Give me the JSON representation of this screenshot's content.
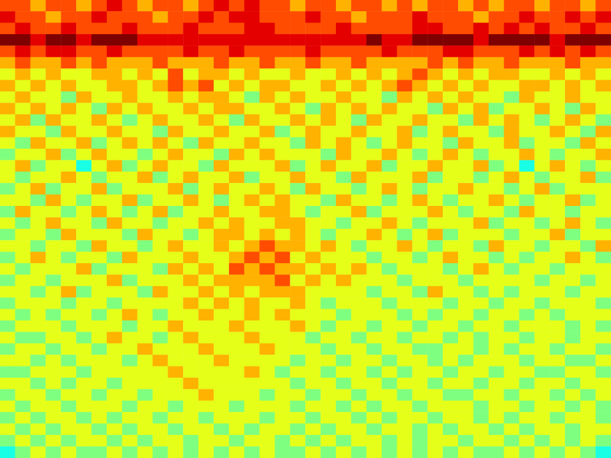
{
  "chart_data": {
    "type": "heatmap",
    "tick_labels": false,
    "grid": false,
    "zlim": [
      0,
      10
    ],
    "cells": [
      [
        8,
        8,
        7,
        8,
        8,
        7,
        8,
        9,
        8,
        7,
        8,
        8,
        7,
        8,
        9,
        8,
        9,
        8,
        8,
        7,
        8,
        8,
        7,
        8,
        8,
        7,
        8,
        7,
        8,
        8,
        7,
        8,
        7,
        8,
        8,
        7,
        8,
        8,
        7,
        8
      ],
      [
        9,
        8,
        8,
        7,
        8,
        8,
        9,
        8,
        8,
        8,
        7,
        8,
        8,
        9,
        8,
        9,
        9,
        8,
        8,
        8,
        9,
        8,
        8,
        7,
        8,
        8,
        8,
        9,
        8,
        8,
        8,
        7,
        8,
        8,
        9,
        8,
        8,
        9,
        8,
        9
      ],
      [
        8,
        9,
        8,
        8,
        9,
        8,
        8,
        8,
        9,
        8,
        8,
        8,
        9,
        8,
        8,
        8,
        9,
        9,
        8,
        8,
        8,
        8,
        9,
        8,
        8,
        8,
        8,
        9,
        9,
        8,
        8,
        9,
        8,
        9,
        8,
        9,
        8,
        8,
        9,
        8
      ],
      [
        10,
        10,
        9,
        10,
        10,
        9,
        10,
        10,
        10,
        9,
        9,
        9,
        9,
        9,
        9,
        9,
        9,
        9,
        9,
        9,
        9,
        9,
        9,
        9,
        10,
        9,
        9,
        10,
        10,
        10,
        10,
        9,
        10,
        10,
        10,
        10,
        9,
        10,
        10,
        10
      ],
      [
        8,
        9,
        8,
        9,
        9,
        8,
        8,
        9,
        8,
        8,
        8,
        8,
        9,
        8,
        8,
        9,
        8,
        8,
        8,
        8,
        9,
        8,
        8,
        8,
        8,
        9,
        8,
        8,
        8,
        9,
        9,
        8,
        8,
        8,
        9,
        8,
        9,
        8,
        9,
        8
      ],
      [
        7,
        8,
        7,
        7,
        8,
        7,
        8,
        7,
        7,
        7,
        8,
        7,
        7,
        7,
        8,
        7,
        7,
        8,
        7,
        7,
        8,
        7,
        7,
        8,
        7,
        7,
        7,
        7,
        8,
        7,
        8,
        7,
        7,
        8,
        7,
        7,
        7,
        8,
        7,
        7
      ],
      [
        6,
        7,
        6,
        7,
        6,
        6,
        7,
        7,
        6,
        7,
        6,
        8,
        6,
        7,
        7,
        6,
        7,
        6,
        6,
        7,
        6,
        6,
        7,
        6,
        7,
        6,
        7,
        8,
        7,
        6,
        7,
        6,
        7,
        7,
        6,
        6,
        7,
        6,
        7,
        6
      ],
      [
        7,
        6,
        7,
        6,
        7,
        6,
        6,
        7,
        7,
        6,
        7,
        8,
        7,
        8,
        6,
        7,
        6,
        7,
        7,
        6,
        6,
        7,
        6,
        7,
        6,
        7,
        8,
        7,
        6,
        7,
        6,
        7,
        6,
        6,
        7,
        7,
        6,
        7,
        6,
        7
      ],
      [
        6,
        7,
        6,
        6,
        5,
        7,
        6,
        6,
        7,
        6,
        6,
        7,
        6,
        7,
        7,
        6,
        5,
        7,
        6,
        7,
        6,
        6,
        7,
        6,
        6,
        5,
        7,
        6,
        7,
        6,
        7,
        6,
        6,
        5,
        7,
        6,
        6,
        7,
        6,
        6
      ],
      [
        7,
        6,
        7,
        6,
        7,
        6,
        5,
        7,
        6,
        7,
        6,
        6,
        7,
        6,
        7,
        7,
        6,
        6,
        7,
        6,
        5,
        7,
        6,
        7,
        6,
        7,
        6,
        6,
        5,
        7,
        6,
        7,
        5,
        6,
        6,
        7,
        6,
        5,
        7,
        6
      ],
      [
        6,
        7,
        5,
        7,
        6,
        6,
        7,
        6,
        5,
        6,
        7,
        6,
        6,
        7,
        6,
        5,
        7,
        6,
        6,
        7,
        6,
        7,
        6,
        5,
        7,
        6,
        6,
        7,
        6,
        6,
        5,
        7,
        6,
        7,
        6,
        5,
        6,
        7,
        6,
        5
      ],
      [
        7,
        6,
        6,
        5,
        7,
        6,
        6,
        7,
        6,
        6,
        5,
        7,
        6,
        6,
        7,
        6,
        6,
        7,
        5,
        6,
        7,
        6,
        6,
        7,
        6,
        6,
        7,
        5,
        6,
        7,
        6,
        6,
        5,
        7,
        6,
        6,
        7,
        6,
        5,
        7
      ],
      [
        6,
        5,
        7,
        6,
        6,
        7,
        5,
        6,
        7,
        6,
        7,
        6,
        5,
        7,
        6,
        6,
        7,
        6,
        6,
        5,
        7,
        6,
        7,
        6,
        5,
        6,
        7,
        6,
        6,
        5,
        7,
        6,
        6,
        7,
        5,
        6,
        6,
        5,
        7,
        6
      ],
      [
        5,
        6,
        6,
        7,
        5,
        6,
        7,
        6,
        6,
        5,
        6,
        7,
        6,
        6,
        5,
        7,
        6,
        7,
        6,
        6,
        6,
        5,
        7,
        6,
        6,
        7,
        6,
        5,
        6,
        7,
        6,
        5,
        6,
        6,
        7,
        6,
        5,
        6,
        6,
        7
      ],
      [
        6,
        7,
        5,
        6,
        6,
        4,
        6,
        7,
        5,
        6,
        7,
        6,
        6,
        5,
        7,
        6,
        6,
        6,
        7,
        5,
        6,
        7,
        6,
        6,
        7,
        5,
        6,
        6,
        7,
        6,
        6,
        7,
        5,
        6,
        4,
        6,
        7,
        6,
        5,
        6
      ],
      [
        6,
        5,
        6,
        6,
        7,
        6,
        5,
        6,
        6,
        7,
        5,
        6,
        7,
        6,
        6,
        7,
        5,
        6,
        6,
        7,
        6,
        6,
        5,
        7,
        6,
        6,
        6,
        7,
        5,
        6,
        6,
        5,
        6,
        7,
        6,
        5,
        6,
        6,
        7,
        5
      ],
      [
        5,
        6,
        7,
        5,
        6,
        6,
        7,
        5,
        6,
        6,
        6,
        7,
        5,
        6,
        7,
        6,
        6,
        7,
        6,
        5,
        7,
        6,
        6,
        5,
        6,
        7,
        6,
        5,
        6,
        6,
        7,
        6,
        6,
        5,
        6,
        7,
        5,
        6,
        6,
        6
      ],
      [
        6,
        6,
        5,
        7,
        6,
        5,
        6,
        6,
        7,
        5,
        6,
        6,
        7,
        6,
        5,
        6,
        7,
        6,
        7,
        6,
        6,
        5,
        7,
        6,
        6,
        5,
        6,
        7,
        6,
        5,
        6,
        6,
        7,
        6,
        5,
        6,
        6,
        7,
        5,
        6
      ],
      [
        5,
        7,
        6,
        6,
        5,
        6,
        7,
        6,
        5,
        6,
        7,
        5,
        6,
        6,
        7,
        6,
        6,
        7,
        7,
        6,
        5,
        6,
        6,
        7,
        5,
        6,
        6,
        6,
        7,
        6,
        5,
        6,
        6,
        5,
        7,
        6,
        6,
        5,
        6,
        6
      ],
      [
        6,
        5,
        6,
        7,
        6,
        6,
        5,
        7,
        6,
        6,
        5,
        6,
        6,
        7,
        6,
        7,
        6,
        6,
        7,
        7,
        6,
        6,
        5,
        6,
        6,
        7,
        6,
        5,
        6,
        6,
        6,
        7,
        5,
        6,
        6,
        5,
        6,
        7,
        6,
        5
      ],
      [
        5,
        6,
        6,
        5,
        7,
        6,
        6,
        6,
        5,
        7,
        6,
        6,
        5,
        6,
        7,
        7,
        6,
        7,
        6,
        7,
        6,
        5,
        6,
        6,
        7,
        6,
        5,
        6,
        7,
        5,
        6,
        6,
        6,
        5,
        6,
        6,
        7,
        5,
        6,
        6
      ],
      [
        6,
        6,
        5,
        6,
        6,
        5,
        7,
        6,
        6,
        5,
        6,
        7,
        6,
        6,
        7,
        6,
        7,
        8,
        7,
        7,
        6,
        7,
        6,
        5,
        6,
        6,
        7,
        6,
        5,
        6,
        6,
        5,
        7,
        6,
        6,
        5,
        6,
        6,
        5,
        7
      ],
      [
        5,
        6,
        7,
        6,
        5,
        6,
        6,
        5,
        7,
        6,
        6,
        6,
        7,
        6,
        6,
        7,
        8,
        7,
        8,
        6,
        7,
        6,
        6,
        6,
        5,
        6,
        6,
        5,
        6,
        7,
        6,
        6,
        5,
        6,
        5,
        6,
        6,
        7,
        6,
        5
      ],
      [
        6,
        5,
        6,
        6,
        6,
        7,
        5,
        6,
        6,
        6,
        5,
        7,
        6,
        7,
        6,
        8,
        7,
        8,
        7,
        7,
        6,
        7,
        6,
        7,
        6,
        5,
        6,
        6,
        6,
        5,
        6,
        7,
        6,
        5,
        6,
        6,
        5,
        6,
        6,
        6
      ],
      [
        5,
        6,
        6,
        5,
        6,
        6,
        6,
        7,
        5,
        6,
        6,
        6,
        7,
        6,
        7,
        7,
        7,
        7,
        8,
        6,
        7,
        6,
        7,
        6,
        6,
        6,
        5,
        6,
        6,
        6,
        5,
        6,
        6,
        6,
        6,
        5,
        6,
        6,
        5,
        6
      ],
      [
        6,
        6,
        5,
        6,
        7,
        5,
        6,
        6,
        6,
        5,
        7,
        6,
        6,
        7,
        6,
        7,
        6,
        7,
        7,
        7,
        6,
        6,
        6,
        6,
        5,
        6,
        6,
        5,
        7,
        6,
        6,
        5,
        6,
        5,
        6,
        6,
        6,
        5,
        6,
        6
      ],
      [
        5,
        6,
        6,
        6,
        5,
        6,
        6,
        5,
        6,
        6,
        6,
        6,
        7,
        6,
        7,
        6,
        7,
        6,
        6,
        7,
        6,
        5,
        6,
        6,
        6,
        5,
        6,
        6,
        6,
        5,
        6,
        6,
        5,
        6,
        6,
        5,
        6,
        6,
        6,
        5
      ],
      [
        6,
        5,
        6,
        5,
        6,
        6,
        5,
        6,
        7,
        6,
        5,
        6,
        6,
        7,
        6,
        6,
        7,
        6,
        7,
        6,
        6,
        6,
        5,
        6,
        6,
        6,
        5,
        6,
        5,
        6,
        6,
        5,
        6,
        6,
        5,
        6,
        5,
        6,
        6,
        6
      ],
      [
        5,
        6,
        6,
        6,
        5,
        6,
        6,
        6,
        5,
        6,
        6,
        7,
        6,
        6,
        6,
        7,
        6,
        6,
        6,
        7,
        6,
        5,
        6,
        6,
        5,
        6,
        6,
        5,
        6,
        6,
        5,
        6,
        6,
        5,
        6,
        6,
        6,
        5,
        6,
        5
      ],
      [
        6,
        5,
        5,
        6,
        6,
        5,
        6,
        7,
        6,
        6,
        5,
        6,
        7,
        6,
        6,
        6,
        7,
        6,
        6,
        6,
        5,
        6,
        6,
        5,
        6,
        6,
        5,
        6,
        6,
        5,
        6,
        5,
        6,
        6,
        5,
        6,
        6,
        5,
        6,
        6
      ],
      [
        5,
        6,
        6,
        5,
        6,
        6,
        5,
        6,
        6,
        7,
        6,
        6,
        6,
        7,
        6,
        6,
        6,
        7,
        6,
        6,
        6,
        5,
        6,
        6,
        5,
        6,
        6,
        5,
        5,
        6,
        6,
        5,
        6,
        5,
        6,
        6,
        5,
        6,
        6,
        5
      ],
      [
        6,
        6,
        5,
        6,
        5,
        6,
        6,
        6,
        5,
        6,
        7,
        6,
        6,
        6,
        7,
        6,
        6,
        6,
        6,
        5,
        6,
        6,
        5,
        6,
        6,
        5,
        6,
        6,
        5,
        6,
        5,
        6,
        6,
        6,
        5,
        6,
        6,
        5,
        5,
        6
      ],
      [
        5,
        5,
        6,
        6,
        6,
        5,
        6,
        6,
        6,
        6,
        6,
        7,
        6,
        6,
        6,
        6,
        7,
        6,
        5,
        6,
        6,
        5,
        6,
        6,
        5,
        6,
        5,
        6,
        6,
        5,
        6,
        6,
        5,
        6,
        6,
        5,
        5,
        6,
        6,
        5
      ],
      [
        6,
        6,
        5,
        6,
        5,
        6,
        6,
        5,
        6,
        6,
        6,
        6,
        7,
        6,
        6,
        6,
        6,
        6,
        6,
        5,
        6,
        6,
        5,
        6,
        6,
        5,
        6,
        6,
        5,
        6,
        6,
        5,
        6,
        6,
        5,
        6,
        6,
        5,
        6,
        6
      ],
      [
        5,
        6,
        6,
        5,
        6,
        6,
        5,
        6,
        6,
        5,
        6,
        6,
        6,
        7,
        6,
        6,
        6,
        5,
        6,
        6,
        5,
        6,
        6,
        5,
        6,
        6,
        5,
        6,
        6,
        5,
        5,
        6,
        6,
        5,
        6,
        6,
        5,
        6,
        5,
        6
      ],
      [
        6,
        5,
        6,
        6,
        5,
        6,
        6,
        6,
        5,
        6,
        6,
        5,
        6,
        6,
        6,
        5,
        6,
        6,
        6,
        5,
        6,
        6,
        5,
        6,
        5,
        6,
        6,
        5,
        6,
        6,
        6,
        5,
        6,
        6,
        5,
        6,
        6,
        5,
        6,
        5
      ],
      [
        5,
        6,
        5,
        6,
        6,
        5,
        6,
        5,
        6,
        6,
        5,
        6,
        6,
        5,
        6,
        6,
        6,
        5,
        6,
        6,
        5,
        6,
        6,
        5,
        6,
        5,
        6,
        6,
        5,
        6,
        6,
        5,
        6,
        5,
        6,
        6,
        5,
        6,
        6,
        5
      ],
      [
        6,
        5,
        6,
        5,
        6,
        6,
        5,
        6,
        5,
        6,
        6,
        5,
        6,
        6,
        5,
        6,
        5,
        6,
        6,
        5,
        6,
        5,
        6,
        6,
        5,
        6,
        6,
        5,
        6,
        5,
        6,
        6,
        5,
        6,
        5,
        6,
        6,
        5,
        6,
        6
      ],
      [
        5,
        6,
        5,
        6,
        5,
        6,
        6,
        5,
        6,
        5,
        6,
        6,
        5,
        6,
        6,
        5,
        6,
        6,
        5,
        6,
        5,
        6,
        5,
        6,
        6,
        5,
        6,
        5,
        6,
        6,
        5,
        6,
        6,
        5,
        6,
        5,
        6,
        5,
        6,
        5
      ],
      [
        4,
        5,
        6,
        5,
        6,
        5,
        5,
        6,
        5,
        6,
        5,
        6,
        5,
        6,
        5,
        6,
        5,
        6,
        5,
        5,
        6,
        5,
        6,
        5,
        6,
        5,
        6,
        5,
        6,
        5,
        6,
        5,
        5,
        6,
        5,
        6,
        5,
        6,
        5,
        4
      ]
    ]
  }
}
